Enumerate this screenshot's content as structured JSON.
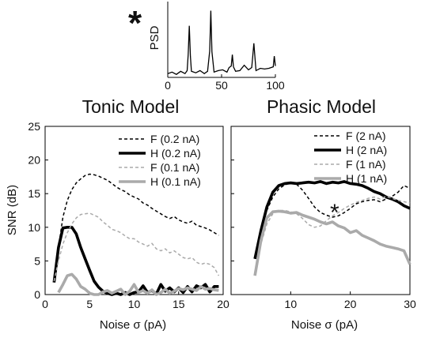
{
  "chart_data": [
    {
      "type": "line",
      "title": "",
      "xlabel": "",
      "ylabel": "PSD",
      "xlim": [
        0,
        100
      ],
      "ylim": [
        0,
        1
      ],
      "xticks": [
        "0",
        "50",
        "100"
      ],
      "marker": "*",
      "series": [
        {
          "x": [
            0,
            4,
            8,
            12,
            16,
            18,
            19,
            20,
            21,
            22,
            26,
            30,
            34,
            37,
            39,
            40,
            41,
            43,
            47,
            51,
            55,
            57,
            59,
            60,
            61,
            63,
            67,
            71,
            75,
            78,
            79,
            80,
            81,
            82,
            86,
            90,
            94,
            98,
            99,
            100
          ],
          "y": [
            0.05,
            0.07,
            0.04,
            0.08,
            0.05,
            0.09,
            0.3,
            0.68,
            0.28,
            0.08,
            0.06,
            0.09,
            0.05,
            0.08,
            0.35,
            0.88,
            0.34,
            0.07,
            0.09,
            0.1,
            0.07,
            0.13,
            0.15,
            0.3,
            0.14,
            0.08,
            0.09,
            0.16,
            0.1,
            0.13,
            0.28,
            0.45,
            0.26,
            0.09,
            0.12,
            0.11,
            0.12,
            0.14,
            0.28,
            0.15
          ],
          "color": "#000000"
        }
      ]
    },
    {
      "type": "line",
      "title": "Tonic Model",
      "xlabel": "Noise  σ (pA)",
      "ylabel": "SNR (dB)",
      "xlim": [
        0,
        20
      ],
      "ylim": [
        0,
        25
      ],
      "xticks": [
        "0",
        "5",
        "10",
        "15",
        "20"
      ],
      "yticks": [
        "0",
        "5",
        "10",
        "15",
        "20",
        "25"
      ],
      "legend_position": "top-right",
      "series": [
        {
          "name": "F (0.2 nA)",
          "style": "dashed",
          "color": "#000000",
          "x": [
            1,
            1.5,
            2,
            2.5,
            3,
            3.5,
            4,
            4.5,
            5,
            5.5,
            6,
            6.5,
            7,
            7.5,
            8,
            8.5,
            9,
            9.5,
            10,
            10.5,
            11,
            11.5,
            12,
            12.5,
            13,
            13.5,
            14,
            14.5,
            15,
            15.5,
            16,
            16.5,
            17,
            17.5,
            18,
            18.5,
            19,
            19.5
          ],
          "y": [
            2,
            7,
            11.5,
            14,
            15.6,
            16.6,
            17.2,
            17.7,
            17.9,
            17.8,
            17.6,
            17.3,
            17,
            16.5,
            16,
            15.6,
            15.3,
            14.8,
            14.5,
            14.2,
            13.6,
            13.3,
            12.8,
            12.4,
            12,
            11.6,
            11.3,
            11.6,
            11.1,
            10.8,
            10.6,
            10.9,
            10.3,
            10.1,
            9.9,
            9.6,
            9.2,
            8.8
          ]
        },
        {
          "name": "H (0.2 nA)",
          "style": "solid-thick",
          "color": "#000000",
          "x": [
            1,
            1.5,
            2,
            2.5,
            3,
            3.5,
            4,
            4.5,
            5,
            5.5,
            6,
            6.5,
            7,
            7.5,
            8,
            8.5,
            9,
            9.5,
            10,
            10.5,
            11,
            11.5,
            12,
            12.5,
            13,
            13.5,
            14,
            14.5,
            15,
            15.5,
            16,
            16.5,
            17,
            17.5,
            18,
            18.5,
            19,
            19.5
          ],
          "y": [
            1.8,
            7,
            9.9,
            10,
            10,
            9,
            7,
            5.3,
            3.6,
            2,
            1.1,
            0.5,
            0.2,
            0,
            0.2,
            0,
            0.3,
            0,
            0.3,
            0.4,
            1.3,
            0.3,
            0.6,
            0.1,
            1.5,
            0.5,
            1,
            0.4,
            1,
            0.3,
            1.2,
            0.4,
            1.3,
            1,
            1.5,
            0.4,
            1.2,
            1.2
          ]
        },
        {
          "name": "F (0.1 nA)",
          "style": "dashed",
          "color": "#aaaaaa",
          "x": [
            1,
            1.5,
            2,
            2.5,
            3,
            3.5,
            4,
            4.5,
            5,
            5.5,
            6,
            6.5,
            7,
            7.5,
            8,
            8.5,
            9,
            9.5,
            10,
            10.5,
            11,
            11.5,
            12,
            12.5,
            13,
            13.5,
            14,
            14.5,
            15,
            15.5,
            16,
            16.5,
            17,
            17.5,
            18,
            18.5,
            19,
            19.5
          ],
          "y": [
            2,
            5,
            7.5,
            9.2,
            10.5,
            11.4,
            11.9,
            12,
            12.1,
            11.8,
            11.5,
            10.8,
            10.3,
            9.7,
            9.5,
            9.2,
            8.7,
            8.3,
            8.3,
            7.8,
            7.5,
            7.2,
            7.6,
            6.8,
            6.5,
            6.8,
            6.2,
            6.5,
            6,
            5.5,
            5.3,
            5.5,
            4.8,
            4.5,
            4.7,
            4.5,
            4,
            2.8
          ]
        },
        {
          "name": "H (0.1 nA)",
          "style": "solid-thick",
          "color": "#aaaaaa",
          "x": [
            1.5,
            2,
            2.5,
            3,
            3.5,
            4,
            4.5,
            5,
            5.5,
            6,
            6.5,
            7,
            7.5,
            8,
            8.5,
            9,
            9.5,
            10,
            10.5,
            11,
            11.5,
            12,
            12.5,
            13,
            13.5,
            14,
            14.5,
            15,
            15.5,
            16,
            16.5,
            17,
            17.5,
            18,
            18.5,
            19,
            19.5
          ],
          "y": [
            0.3,
            1.5,
            2.8,
            3,
            2.3,
            1.2,
            0.8,
            0.2,
            0,
            0,
            0.4,
            0.6,
            0.2,
            0.5,
            0.8,
            0,
            0.5,
            1.5,
            0.3,
            0.6,
            0.2,
            0.7,
            0,
            0.3,
            0.8,
            0.2,
            0.5,
            0.9,
            0.7,
            1,
            0.8,
            0.6,
            1.2,
            0.8,
            0.9,
            0.7,
            0.6
          ]
        }
      ]
    },
    {
      "type": "line",
      "title": "Phasic Model",
      "xlabel": "Noise  σ (pA)",
      "ylabel": "",
      "xlim": [
        0,
        30
      ],
      "ylim": [
        0,
        25
      ],
      "xticks": [
        "10",
        "20",
        "30"
      ],
      "legend_position": "top-right",
      "marker": "*",
      "series": [
        {
          "name": "F (2 nA)",
          "style": "dashed",
          "color": "#000000",
          "x": [
            4,
            5,
            6,
            7,
            8,
            9,
            10,
            11,
            12,
            13,
            14,
            15,
            16,
            17,
            18,
            19,
            20,
            21,
            22,
            23,
            24,
            25,
            26,
            27,
            28,
            29,
            30
          ],
          "y": [
            5.3,
            9.5,
            12.5,
            14.5,
            15.7,
            16.3,
            16.6,
            16.4,
            15.5,
            14.3,
            13,
            12.2,
            11.8,
            11.5,
            11.7,
            12.2,
            12.8,
            13.5,
            13.8,
            14,
            14.1,
            13.8,
            14.2,
            14.6,
            15.2,
            16.2,
            15.8
          ]
        },
        {
          "name": "H (2 nA)",
          "style": "solid-thick",
          "color": "#000000",
          "x": [
            4,
            5,
            6,
            7,
            8,
            9,
            10,
            11,
            12,
            13,
            14,
            15,
            16,
            17,
            18,
            19,
            20,
            21,
            22,
            23,
            24,
            25,
            26,
            27,
            28,
            29,
            30
          ],
          "y": [
            5.3,
            9.5,
            13,
            15.2,
            16.2,
            16.5,
            16.6,
            16.5,
            16.6,
            16.7,
            16.6,
            16.8,
            16.5,
            16.7,
            16.6,
            16.8,
            16.5,
            16.4,
            16.2,
            15.8,
            15.3,
            15,
            14.5,
            14.2,
            13.8,
            13.2,
            12.8
          ]
        },
        {
          "name": "F (1 nA)",
          "style": "dashed",
          "color": "#aaaaaa",
          "x": [
            4,
            5,
            6,
            7,
            8,
            9,
            10,
            11,
            12,
            13,
            14,
            15,
            16,
            17,
            18,
            19,
            20,
            21,
            22,
            23,
            24,
            25,
            26,
            27,
            28,
            29,
            30
          ],
          "y": [
            3,
            7.5,
            10.5,
            12,
            12.5,
            12.5,
            12.3,
            12,
            11.3,
            10.4,
            10,
            10.2,
            11,
            11.7,
            12.2,
            12.8,
            13.3,
            13.7,
            14,
            14.3,
            14.5,
            14.2,
            14.6,
            14.3,
            14,
            13.8,
            13.6
          ]
        },
        {
          "name": "H (1 nA)",
          "style": "solid-thick",
          "color": "#aaaaaa",
          "x": [
            4,
            5,
            6,
            7,
            8,
            9,
            10,
            11,
            12,
            13,
            14,
            15,
            16,
            17,
            18,
            19,
            20,
            21,
            22,
            23,
            24,
            25,
            26,
            27,
            28,
            29,
            30
          ],
          "y": [
            2.8,
            8,
            11.4,
            12.3,
            12.4,
            12.3,
            12.1,
            12.2,
            11.8,
            11.5,
            11.2,
            10.8,
            10.5,
            10.8,
            10.2,
            9.9,
            9.2,
            9.5,
            8.8,
            8.4,
            8,
            7.5,
            7.2,
            7,
            6.8,
            6.5,
            4.5
          ]
        }
      ]
    }
  ]
}
